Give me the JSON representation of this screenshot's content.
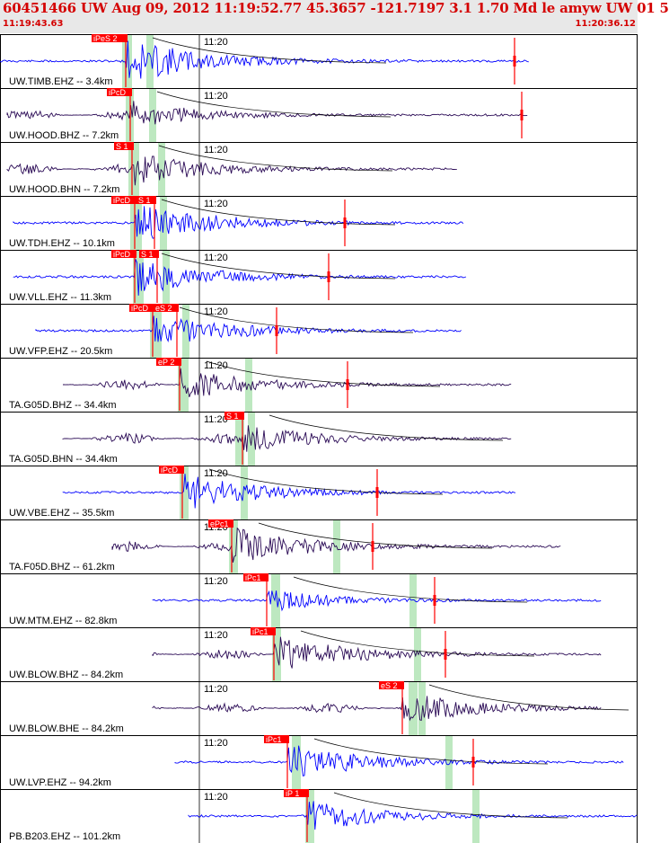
{
  "header": {
    "title": "60451466 UW Aug 09, 2012 11:19:52.77    45.3657 -121.7197  3.1 1.70 Md le amyw UW 01    5",
    "start_time": "11:19:43.63",
    "end_time": "11:20:36.12"
  },
  "colors": {
    "header_text": "#d40000",
    "blue_trace": "#0000ff",
    "dark_trace": "#2a0a55",
    "pick": "#ff0000",
    "window": "#bde8c0"
  },
  "minute_mark": "11:20",
  "traces": [
    {
      "label": "UW.TIMB.EHZ -- 3.4km",
      "picks": [
        "iPeS 2"
      ],
      "color": "blue"
    },
    {
      "label": "UW.HOOD.BHZ -- 7.2km",
      "picks": [
        "iPcD"
      ],
      "color": "dark"
    },
    {
      "label": "UW.HOOD.BHN -- 7.2km",
      "picks": [
        "S 1"
      ],
      "color": "dark"
    },
    {
      "label": "UW.TDH.EHZ -- 10.1km",
      "picks": [
        "iPcD",
        "S 1"
      ],
      "color": "blue"
    },
    {
      "label": "UW.VLL.EHZ -- 11.3km",
      "picks": [
        "iPcD",
        "S 1"
      ],
      "color": "blue"
    },
    {
      "label": "UW.VFP.EHZ -- 20.5km",
      "picks": [
        "iPcD",
        "eS 2"
      ],
      "color": "blue"
    },
    {
      "label": "TA.G05D.BHZ -- 34.4km",
      "picks": [
        "eP 2"
      ],
      "color": "dark"
    },
    {
      "label": "TA.G05D.BHN -- 34.4km",
      "picks": [
        "S 1"
      ],
      "color": "dark"
    },
    {
      "label": "UW.VBE.EHZ -- 35.5km",
      "picks": [
        "iPcD"
      ],
      "color": "blue"
    },
    {
      "label": "TA.F05D.BHZ -- 61.2km",
      "picks": [
        "ePc1"
      ],
      "color": "dark"
    },
    {
      "label": "UW.MTM.EHZ -- 82.8km",
      "picks": [
        "iPc1"
      ],
      "color": "blue"
    },
    {
      "label": "UW.BLOW.BHZ -- 84.2km",
      "picks": [
        "iPc1"
      ],
      "color": "dark"
    },
    {
      "label": "UW.BLOW.BHE -- 84.2km",
      "picks": [
        "eS 2"
      ],
      "color": "dark"
    },
    {
      "label": "UW.LVP.EHZ -- 94.2km",
      "picks": [
        "iPc1"
      ],
      "color": "blue"
    },
    {
      "label": "PB.B203.EHZ -- 101.2km",
      "picks": [
        "iP 1"
      ],
      "color": "blue"
    }
  ]
}
